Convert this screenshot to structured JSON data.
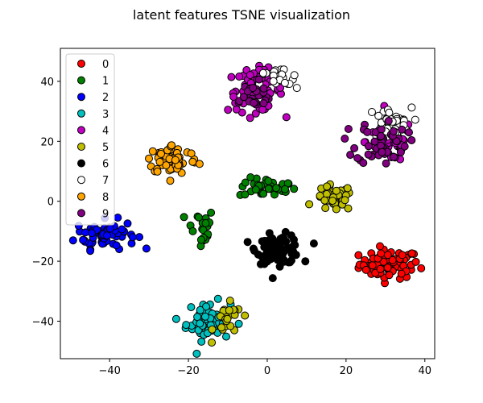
{
  "chart_data": {
    "type": "scatter",
    "title": "latent features TSNE visualization",
    "xlabel": "",
    "ylabel": "",
    "xlim": [
      -52.5,
      42.5
    ],
    "ylim": [
      -52.5,
      51
    ],
    "xticks": [
      -40,
      -20,
      0,
      20,
      40
    ],
    "yticks": [
      -40,
      -20,
      0,
      20,
      40
    ],
    "grid": false,
    "legend_position": "upper-left",
    "series": [
      {
        "name": "0",
        "color": "#ff0000",
        "clusters": [
          {
            "cx": 31,
            "cy": -21,
            "sx": 3.8,
            "sy": 2.4,
            "n": 80
          }
        ]
      },
      {
        "name": "1",
        "color": "#008000",
        "clusters": [
          {
            "cx": 0,
            "cy": 4.5,
            "sx": 3.6,
            "sy": 1.6,
            "n": 40
          },
          {
            "cx": -17,
            "cy": -9,
            "sx": 1.8,
            "sy": 3.5,
            "n": 22
          }
        ]
      },
      {
        "name": "2",
        "color": "#0000ff",
        "clusters": [
          {
            "cx": -41,
            "cy": -11,
            "sx": 3.8,
            "sy": 2.4,
            "n": 70
          }
        ]
      },
      {
        "name": "3",
        "color": "#00bfbf",
        "clusters": [
          {
            "cx": -15,
            "cy": -40,
            "sx": 2.8,
            "sy": 3.2,
            "n": 65
          }
        ]
      },
      {
        "name": "4",
        "color": "#bf00bf",
        "clusters": [
          {
            "cx": -3,
            "cy": 37,
            "sx": 3.5,
            "sy": 3.5,
            "n": 65
          },
          {
            "cx": 31,
            "cy": 20,
            "sx": 3.0,
            "sy": 3.6,
            "n": 45
          }
        ]
      },
      {
        "name": "5",
        "color": "#bfbf00",
        "clusters": [
          {
            "cx": 17,
            "cy": 1,
            "sx": 2.4,
            "sy": 2.2,
            "n": 40
          },
          {
            "cx": -10,
            "cy": -40,
            "sx": 1.8,
            "sy": 2.8,
            "n": 25
          }
        ]
      },
      {
        "name": "6",
        "color": "#000000",
        "clusters": [
          {
            "cx": 3,
            "cy": -16,
            "sx": 2.8,
            "sy": 2.4,
            "n": 90
          }
        ]
      },
      {
        "name": "7",
        "color": "#ffffff",
        "clusters": [
          {
            "cx": 31,
            "cy": 26,
            "sx": 2.8,
            "sy": 2.6,
            "n": 40
          },
          {
            "cx": 3,
            "cy": 40,
            "sx": 2.4,
            "sy": 2.4,
            "n": 22
          }
        ]
      },
      {
        "name": "8",
        "color": "#ffa500",
        "clusters": [
          {
            "cx": -24,
            "cy": 14,
            "sx": 3.2,
            "sy": 2.5,
            "n": 75
          }
        ]
      },
      {
        "name": "9",
        "color": "#800080",
        "clusters": [
          {
            "cx": 29,
            "cy": 20,
            "sx": 3.2,
            "sy": 3.8,
            "n": 50
          },
          {
            "cx": -4,
            "cy": 35,
            "sx": 3.0,
            "sy": 2.4,
            "n": 28
          }
        ]
      }
    ]
  }
}
